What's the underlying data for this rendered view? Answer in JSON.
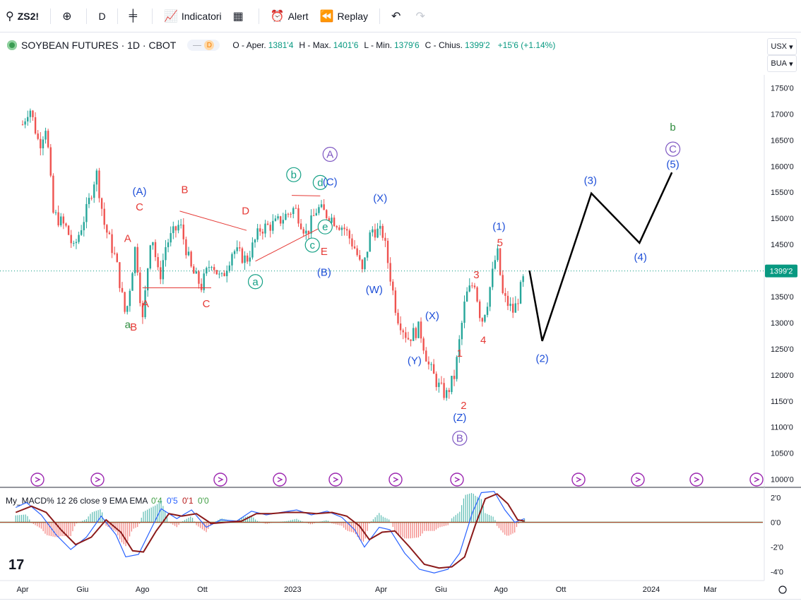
{
  "toolbar": {
    "symbol": "ZS2!",
    "interval": "D",
    "indicators_label": "Indicatori",
    "alert_label": "Alert",
    "replay_label": "Replay"
  },
  "header": {
    "title": "SOYBEAN FUTURES · 1D · CBOT",
    "badge": "D",
    "open_label": "O - Aper.",
    "open": "1381'4",
    "high_label": "H - Max.",
    "high": "1401'6",
    "low_label": "L - Min.",
    "low": "1379'6",
    "close_label": "C - Chius.",
    "close": "1399'2",
    "change": "+15'6 (+1.14%)"
  },
  "scale_buttons": {
    "currency": "USX",
    "unit": "BUA"
  },
  "indicator": {
    "title": "My_MACD% 12 26 close 9 EMA EMA",
    "values": [
      "0'4",
      "0'5",
      "0'1",
      "0'0"
    ],
    "value_colors": [
      "#43a047",
      "#2962ff",
      "#b71c1c",
      "#43a047"
    ]
  },
  "colors": {
    "up": "#26a69a",
    "down": "#ef5350",
    "wave_red": "#e53935",
    "wave_blue": "#1e4fd8",
    "wave_teal": "#14a085",
    "wave_purple": "#7e57c2",
    "wave_green": "#2e8b3d",
    "price_line": "#089981",
    "macd": "#2962ff",
    "signal": "#8b1a1a"
  },
  "chart_data": {
    "type": "candlestick",
    "symbol": "ZS2!",
    "interval": "1D",
    "y_axis_ticks": [
      "1750'0",
      "1700'0",
      "1650'0",
      "1600'0",
      "1550'0",
      "1500'0",
      "1450'0",
      "1400'0",
      "1350'0",
      "1300'0",
      "1250'0",
      "1200'0",
      "1150'0",
      "1100'0",
      "1050'0",
      "1000'0"
    ],
    "ylim": [
      990,
      1775
    ],
    "x_axis_ticks": [
      "Apr",
      "Giu",
      "Ago",
      "Ott",
      "2023",
      "Apr",
      "Giu",
      "Ago",
      "Ott",
      "2024",
      "Mar"
    ],
    "last_price_label": "1399'2",
    "last_price": 1399.25,
    "price_path": [
      [
        "2022-04-01",
        1680
      ],
      [
        "2022-04-08",
        1715
      ],
      [
        "2022-04-18",
        1640
      ],
      [
        "2022-04-25",
        1680
      ],
      [
        "2022-05-02",
        1510
      ],
      [
        "2022-05-16",
        1480
      ],
      [
        "2022-05-23",
        1440
      ],
      [
        "2022-06-06",
        1520
      ],
      [
        "2022-06-15",
        1590
      ],
      [
        "2022-06-23",
        1490
      ],
      [
        "2022-07-05",
        1420
      ],
      [
        "2022-07-15",
        1310
      ],
      [
        "2022-07-25",
        1450
      ],
      [
        "2022-08-01",
        1300
      ],
      [
        "2022-08-10",
        1480
      ],
      [
        "2022-08-18",
        1380
      ],
      [
        "2022-08-25",
        1450
      ],
      [
        "2022-09-08",
        1490
      ],
      [
        "2022-09-20",
        1400
      ],
      [
        "2022-09-30",
        1370
      ],
      [
        "2022-10-10",
        1420
      ],
      [
        "2022-10-20",
        1380
      ],
      [
        "2022-11-01",
        1440
      ],
      [
        "2022-11-15",
        1420
      ],
      [
        "2022-11-29",
        1480
      ],
      [
        "2022-12-15",
        1490
      ],
      [
        "2023-01-03",
        1520
      ],
      [
        "2023-01-15",
        1470
      ],
      [
        "2023-01-26",
        1520
      ],
      [
        "2023-02-10",
        1500
      ],
      [
        "2023-02-23",
        1480
      ],
      [
        "2023-03-06",
        1440
      ],
      [
        "2023-03-13",
        1395
      ],
      [
        "2023-03-22",
        1480
      ],
      [
        "2023-04-03",
        1470
      ],
      [
        "2023-04-17",
        1315
      ],
      [
        "2023-04-28",
        1270
      ],
      [
        "2023-05-10",
        1290
      ],
      [
        "2023-05-19",
        1220
      ],
      [
        "2023-05-29",
        1180
      ],
      [
        "2023-06-06",
        1160
      ],
      [
        "2023-06-15",
        1200
      ],
      [
        "2023-06-26",
        1350
      ],
      [
        "2023-07-05",
        1380
      ],
      [
        "2023-07-12",
        1300
      ],
      [
        "2023-07-18",
        1340
      ],
      [
        "2023-07-28",
        1440
      ],
      [
        "2023-08-03",
        1350
      ],
      [
        "2023-08-14",
        1320
      ],
      [
        "2023-08-25",
        1390
      ]
    ],
    "projection": [
      [
        "2023-08-30",
        1400
      ],
      [
        "2023-09-12",
        1265
      ],
      [
        "2023-11-01",
        1548
      ],
      [
        "2023-12-20",
        1453
      ],
      [
        "2024-01-22",
        1588
      ]
    ],
    "wave_labels": [
      {
        "text": "a",
        "color": "wave_green",
        "date": "2022-07-17",
        "price": 1290
      },
      {
        "text": "A",
        "color": "wave_red",
        "date": "2022-07-17",
        "price": 1455
      },
      {
        "text": "C",
        "color": "wave_red",
        "date": "2022-07-29",
        "price": 1515
      },
      {
        "text": "(A)",
        "color": "wave_blue",
        "date": "2022-07-29",
        "price": 1545
      },
      {
        "text": "B",
        "color": "wave_red",
        "date": "2022-07-23",
        "price": 1285
      },
      {
        "text": "A",
        "color": "wave_red",
        "date": "2022-08-04",
        "price": 1330
      },
      {
        "text": "B",
        "color": "wave_red",
        "date": "2022-09-13",
        "price": 1548
      },
      {
        "text": "C",
        "color": "wave_red",
        "date": "2022-10-05",
        "price": 1330
      },
      {
        "text": "D",
        "color": "wave_red",
        "date": "2022-11-14",
        "price": 1508
      },
      {
        "text": "E",
        "color": "wave_red",
        "date": "2023-02-02",
        "price": 1430
      },
      {
        "text": "a",
        "color": "wave_teal",
        "circle": true,
        "date": "2022-11-24",
        "price": 1372
      },
      {
        "text": "b",
        "color": "wave_teal",
        "circle": true,
        "date": "2023-01-02",
        "price": 1577
      },
      {
        "text": "c",
        "color": "wave_teal",
        "circle": true,
        "date": "2023-01-21",
        "price": 1442
      },
      {
        "text": "d",
        "color": "wave_teal",
        "circle": true,
        "date": "2023-01-29",
        "price": 1562
      },
      {
        "text": "e",
        "color": "wave_teal",
        "circle": true,
        "date": "2023-02-03",
        "price": 1477
      },
      {
        "text": "A",
        "color": "wave_purple",
        "circle": true,
        "date": "2023-02-08",
        "price": 1616
      },
      {
        "text": "(C)",
        "color": "wave_blue",
        "date": "2023-02-08",
        "price": 1563
      },
      {
        "text": "(B)",
        "color": "wave_blue",
        "date": "2023-02-02",
        "price": 1390
      },
      {
        "text": "(X)",
        "color": "wave_blue",
        "date": "2023-03-31",
        "price": 1532
      },
      {
        "text": "(W)",
        "color": "wave_blue",
        "date": "2023-03-25",
        "price": 1357
      },
      {
        "text": "(X)",
        "color": "wave_blue",
        "date": "2023-05-23",
        "price": 1307
      },
      {
        "text": "(Y)",
        "color": "wave_blue",
        "date": "2023-05-05",
        "price": 1221
      },
      {
        "text": "1",
        "color": "wave_red",
        "date": "2023-06-20",
        "price": 1235
      },
      {
        "text": "2",
        "color": "wave_red",
        "date": "2023-06-24",
        "price": 1135
      },
      {
        "text": "(Z)",
        "color": "wave_blue",
        "date": "2023-06-20",
        "price": 1112
      },
      {
        "text": "B",
        "color": "wave_purple",
        "circle": true,
        "date": "2023-06-20",
        "price": 1072
      },
      {
        "text": "3",
        "color": "wave_red",
        "date": "2023-07-07",
        "price": 1385
      },
      {
        "text": "4",
        "color": "wave_red",
        "date": "2023-07-14",
        "price": 1260
      },
      {
        "text": "5",
        "color": "wave_red",
        "date": "2023-07-31",
        "price": 1447
      },
      {
        "text": "(1)",
        "color": "wave_blue",
        "date": "2023-07-30",
        "price": 1478
      },
      {
        "text": "(2)",
        "color": "wave_blue",
        "date": "2023-09-12",
        "price": 1225
      },
      {
        "text": "(3)",
        "color": "wave_blue",
        "date": "2023-10-31",
        "price": 1566
      },
      {
        "text": "(4)",
        "color": "wave_blue",
        "date": "2023-12-21",
        "price": 1419
      },
      {
        "text": "(5)",
        "color": "wave_blue",
        "date": "2024-01-23",
        "price": 1597
      },
      {
        "text": "C",
        "color": "wave_purple",
        "circle": true,
        "date": "2024-01-23",
        "price": 1626
      },
      {
        "text": "b",
        "color": "wave_green",
        "date": "2024-01-23",
        "price": 1668
      }
    ],
    "macd": {
      "ylim": [
        -4.6,
        2.6
      ],
      "ticks": [
        "2'0",
        "0'0",
        "-2'0",
        "-4'0"
      ],
      "macd_path": [
        [
          "2022-03-25",
          1.2
        ],
        [
          "2022-04-05",
          1.6
        ],
        [
          "2022-04-20",
          0.6
        ],
        [
          "2022-05-05",
          -1.0
        ],
        [
          "2022-05-20",
          -2.2
        ],
        [
          "2022-06-05",
          -1.2
        ],
        [
          "2022-06-20",
          0.5
        ],
        [
          "2022-07-05",
          -1.0
        ],
        [
          "2022-07-15",
          -2.8
        ],
        [
          "2022-07-28",
          -2.6
        ],
        [
          "2022-08-10",
          -0.5
        ],
        [
          "2022-08-20",
          1.1
        ],
        [
          "2022-09-05",
          0.3
        ],
        [
          "2022-09-20",
          1.0
        ],
        [
          "2022-10-05",
          -0.4
        ],
        [
          "2022-10-20",
          0.2
        ],
        [
          "2022-11-05",
          0.1
        ],
        [
          "2022-11-20",
          0.9
        ],
        [
          "2022-12-05",
          0.6
        ],
        [
          "2022-12-20",
          0.8
        ],
        [
          "2023-01-05",
          1.0
        ],
        [
          "2023-01-20",
          0.6
        ],
        [
          "2023-02-05",
          0.9
        ],
        [
          "2023-02-20",
          0.4
        ],
        [
          "2023-03-05",
          -0.6
        ],
        [
          "2023-03-15",
          -2.0
        ],
        [
          "2023-03-30",
          -0.4
        ],
        [
          "2023-04-10",
          -0.6
        ],
        [
          "2023-04-25",
          -2.5
        ],
        [
          "2023-05-10",
          -3.8
        ],
        [
          "2023-05-25",
          -4.1
        ],
        [
          "2023-06-08",
          -3.8
        ],
        [
          "2023-06-20",
          -2.5
        ],
        [
          "2023-07-03",
          0.8
        ],
        [
          "2023-07-12",
          2.4
        ],
        [
          "2023-07-25",
          2.5
        ],
        [
          "2023-08-05",
          1.0
        ],
        [
          "2023-08-15",
          0.0
        ],
        [
          "2023-08-25",
          0.3
        ]
      ],
      "signal_path": [
        [
          "2022-03-25",
          0.8
        ],
        [
          "2022-04-10",
          1.3
        ],
        [
          "2022-04-25",
          0.8
        ],
        [
          "2022-05-10",
          -0.6
        ],
        [
          "2022-05-25",
          -1.8
        ],
        [
          "2022-06-10",
          -1.2
        ],
        [
          "2022-06-25",
          0.2
        ],
        [
          "2022-07-10",
          -0.8
        ],
        [
          "2022-07-22",
          -2.3
        ],
        [
          "2022-08-02",
          -2.4
        ],
        [
          "2022-08-15",
          -0.7
        ],
        [
          "2022-08-28",
          0.7
        ],
        [
          "2022-09-10",
          0.5
        ],
        [
          "2022-09-25",
          0.7
        ],
        [
          "2022-10-10",
          -0.1
        ],
        [
          "2022-10-25",
          0.0
        ],
        [
          "2022-11-10",
          0.1
        ],
        [
          "2022-11-25",
          0.7
        ],
        [
          "2022-12-10",
          0.7
        ],
        [
          "2022-12-25",
          0.8
        ],
        [
          "2023-01-10",
          0.8
        ],
        [
          "2023-01-25",
          0.7
        ],
        [
          "2023-02-10",
          0.8
        ],
        [
          "2023-02-25",
          0.5
        ],
        [
          "2023-03-10",
          -0.3
        ],
        [
          "2023-03-20",
          -1.4
        ],
        [
          "2023-04-02",
          -0.8
        ],
        [
          "2023-04-15",
          -0.7
        ],
        [
          "2023-04-30",
          -2.0
        ],
        [
          "2023-05-15",
          -3.4
        ],
        [
          "2023-05-30",
          -3.7
        ],
        [
          "2023-06-12",
          -3.6
        ],
        [
          "2023-06-25",
          -2.8
        ],
        [
          "2023-07-06",
          -0.2
        ],
        [
          "2023-07-16",
          1.9
        ],
        [
          "2023-07-28",
          2.3
        ],
        [
          "2023-08-08",
          1.5
        ],
        [
          "2023-08-18",
          0.2
        ],
        [
          "2023-08-25",
          0.1
        ]
      ]
    }
  }
}
